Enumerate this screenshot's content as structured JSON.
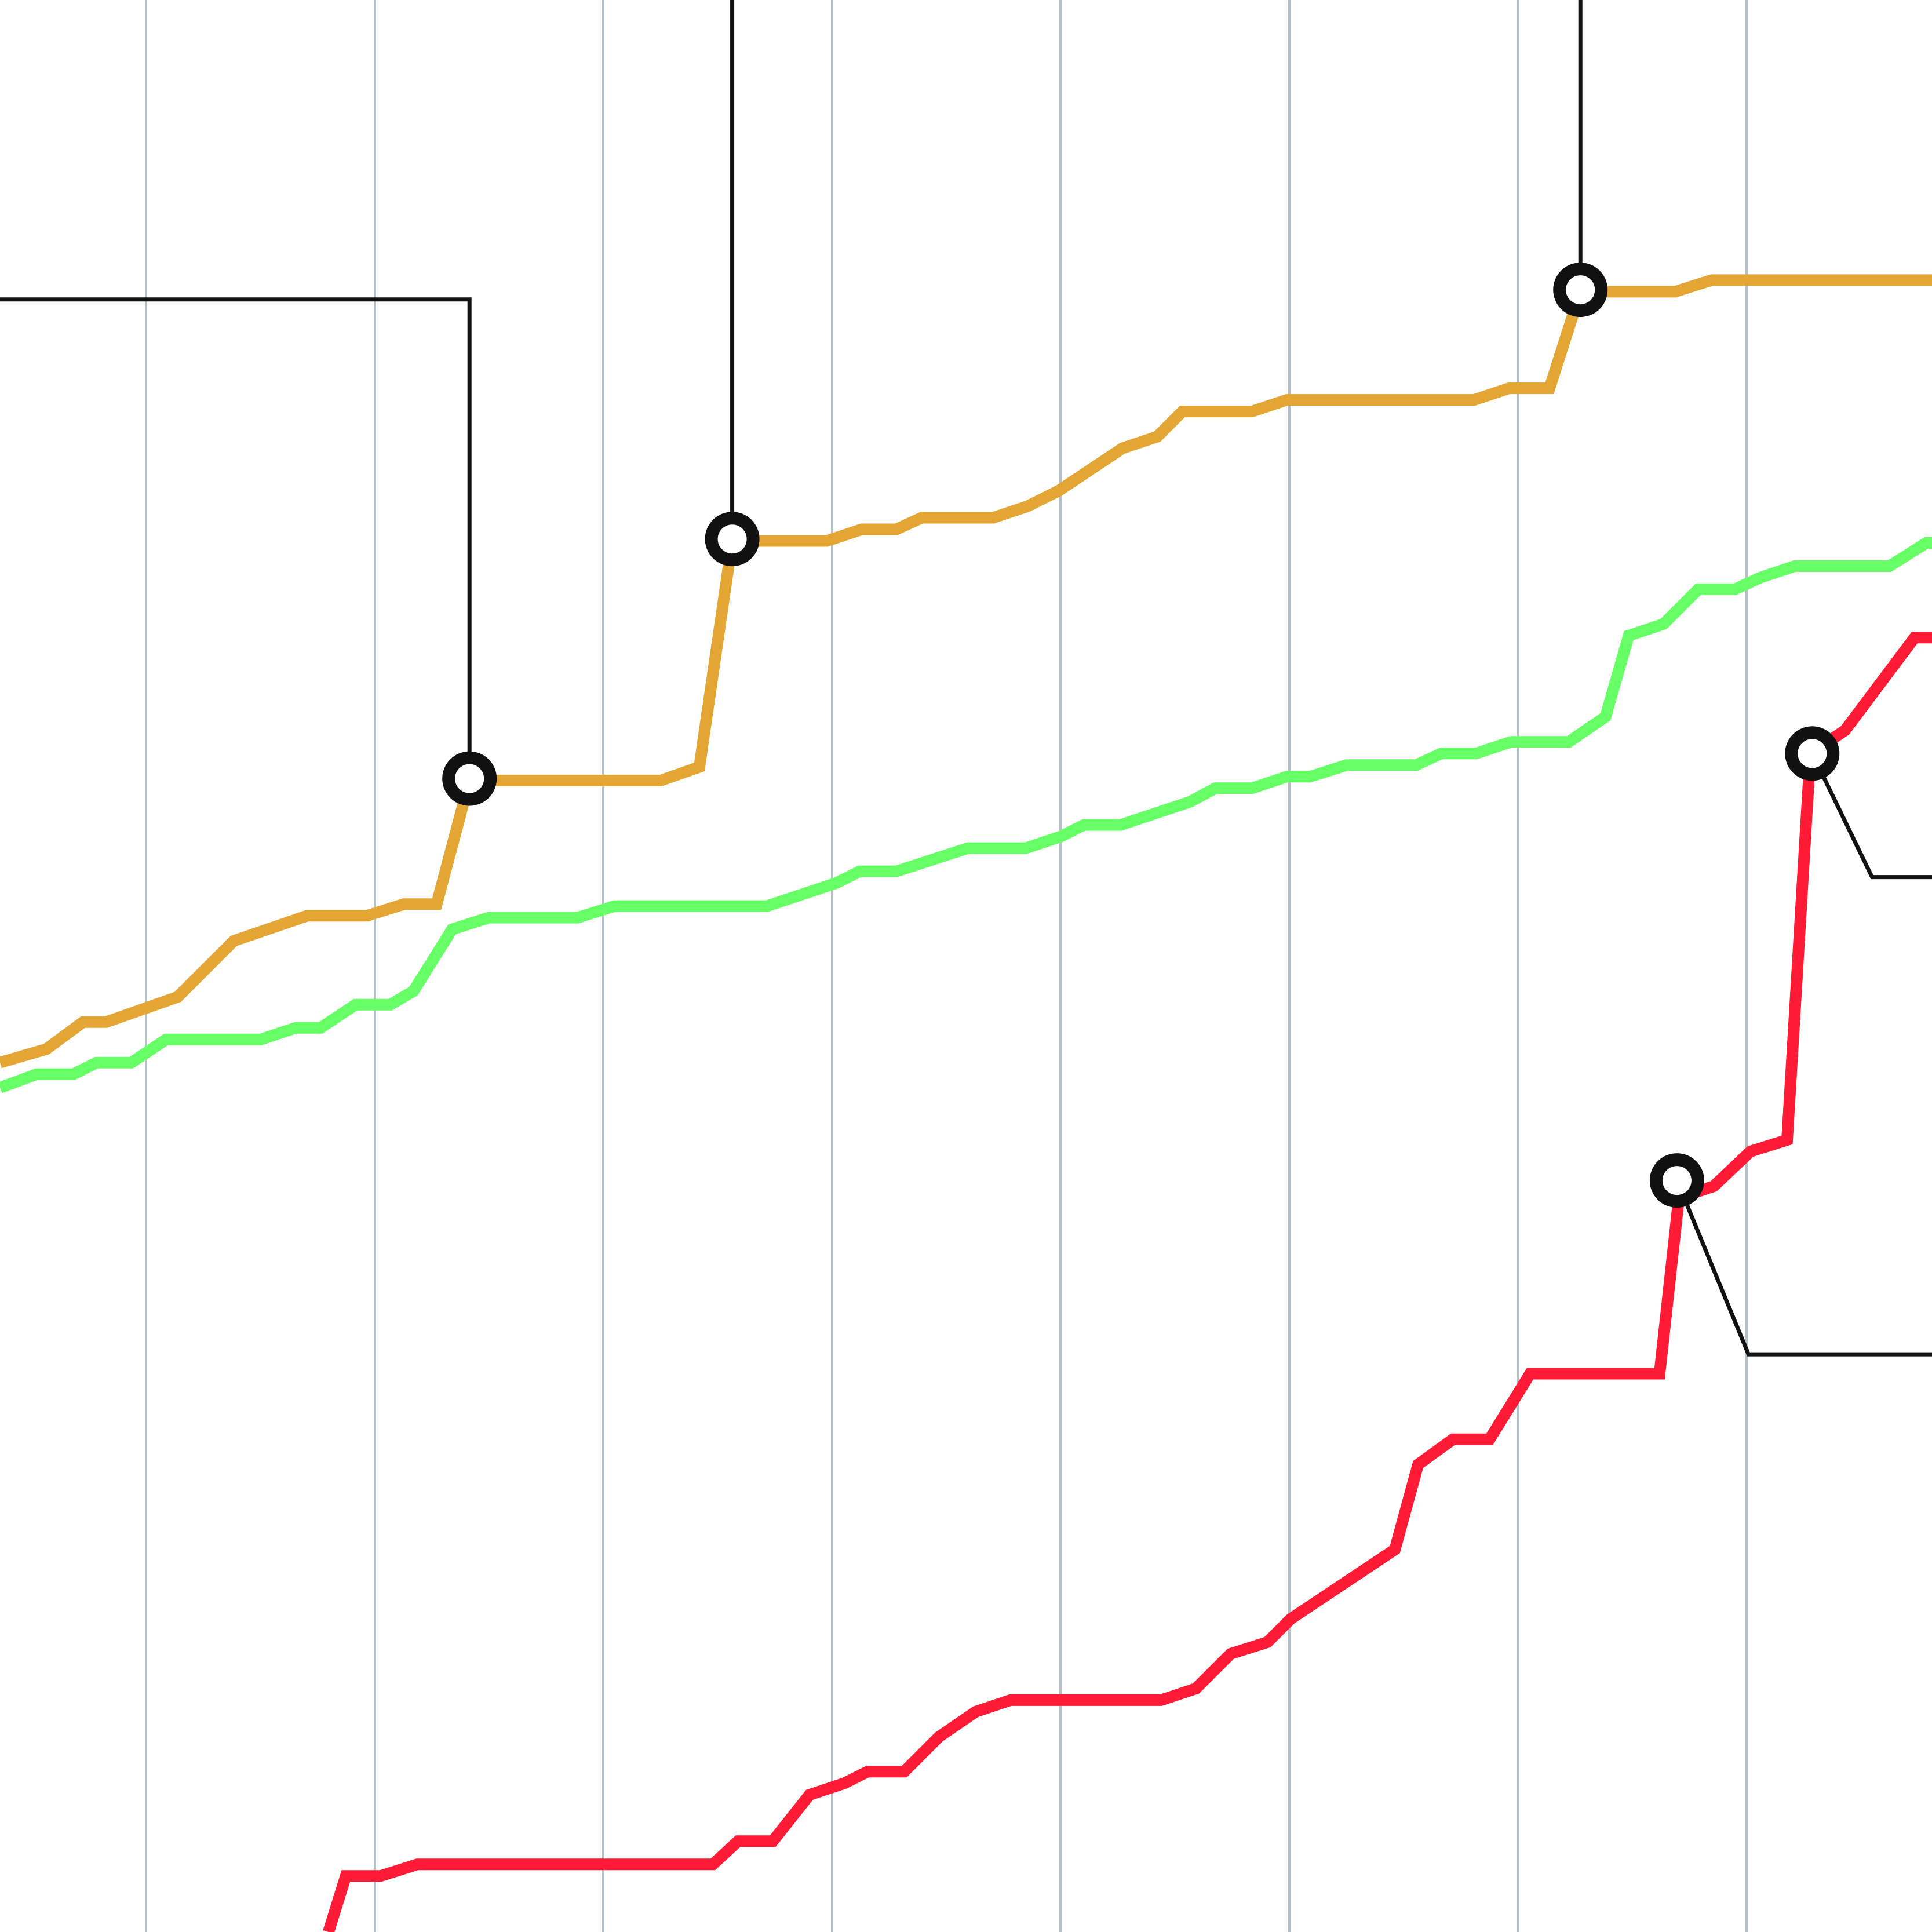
{
  "chart_data": {
    "type": "line",
    "title": "",
    "xlabel": "",
    "ylabel": "",
    "x_range": [
      0,
      100
    ],
    "y_range": [
      0,
      100
    ],
    "vertical_grid": true,
    "legend": "none",
    "colors": {
      "grid": "#B4C2C8",
      "orange": "#E3A533",
      "green": "#66FF66",
      "red": "#FF1B35",
      "annotation": "#111111",
      "marker_fill": "#ffffff"
    },
    "series": [
      {
        "key": "orange",
        "points": [
          [
            0,
            45
          ],
          [
            2.4,
            45.7
          ],
          [
            4.3,
            47.1
          ],
          [
            5.5,
            47.1
          ],
          [
            9.2,
            48.4
          ],
          [
            12.1,
            51.3
          ],
          [
            15.9,
            52.6
          ],
          [
            19,
            52.6
          ],
          [
            20.9,
            53.2
          ],
          [
            22.6,
            53.2
          ],
          [
            24.3,
            59.6
          ],
          [
            34.2,
            59.6
          ],
          [
            36.2,
            60.3
          ],
          [
            37.9,
            72
          ],
          [
            42.8,
            72
          ],
          [
            44.6,
            72.6
          ],
          [
            46.4,
            72.6
          ],
          [
            47.7,
            73.2
          ],
          [
            51.4,
            73.2
          ],
          [
            53.2,
            73.8
          ],
          [
            54.8,
            74.6
          ],
          [
            58.1,
            76.8
          ],
          [
            59.9,
            77.4
          ],
          [
            61.2,
            78.7
          ],
          [
            64.8,
            78.7
          ],
          [
            66.6,
            79.3
          ],
          [
            76.3,
            79.3
          ],
          [
            78.1,
            79.9
          ],
          [
            80.2,
            79.9
          ],
          [
            81.8,
            84.9
          ],
          [
            86.7,
            84.9
          ],
          [
            88.6,
            85.5
          ],
          [
            100,
            85.5
          ]
        ]
      },
      {
        "key": "green",
        "points": [
          [
            0,
            43.7
          ],
          [
            1.9,
            44.4
          ],
          [
            3.8,
            44.4
          ],
          [
            5,
            45
          ],
          [
            6.8,
            45
          ],
          [
            8.6,
            46.2
          ],
          [
            13.5,
            46.2
          ],
          [
            15.3,
            46.8
          ],
          [
            16.6,
            46.8
          ],
          [
            18.4,
            48
          ],
          [
            20.2,
            48
          ],
          [
            21.4,
            48.7
          ],
          [
            23.4,
            51.9
          ],
          [
            25.3,
            52.5
          ],
          [
            29.9,
            52.5
          ],
          [
            31.8,
            53.1
          ],
          [
            39.7,
            53.1
          ],
          [
            43.3,
            54.3
          ],
          [
            44.5,
            54.9
          ],
          [
            46.4,
            54.9
          ],
          [
            50.1,
            56.1
          ],
          [
            53.1,
            56.1
          ],
          [
            54.9,
            56.7
          ],
          [
            56.1,
            57.3
          ],
          [
            58,
            57.3
          ],
          [
            61.6,
            58.5
          ],
          [
            62.9,
            59.2
          ],
          [
            64.8,
            59.2
          ],
          [
            66.6,
            59.8
          ],
          [
            67.8,
            59.8
          ],
          [
            69.7,
            60.4
          ],
          [
            73.3,
            60.4
          ],
          [
            74.6,
            61
          ],
          [
            76.4,
            61
          ],
          [
            78.2,
            61.6
          ],
          [
            81.2,
            61.6
          ],
          [
            83.1,
            62.9
          ],
          [
            84.3,
            67.1
          ],
          [
            86.1,
            67.7
          ],
          [
            87.9,
            69.5
          ],
          [
            89.8,
            69.5
          ],
          [
            91.1,
            70.1
          ],
          [
            92.9,
            70.7
          ],
          [
            97.8,
            70.7
          ],
          [
            99.7,
            71.9
          ],
          [
            100,
            71.9
          ]
        ]
      },
      {
        "key": "red",
        "points": [
          [
            17,
            0
          ],
          [
            17.9,
            2.9
          ],
          [
            19.7,
            2.9
          ],
          [
            21.6,
            3.5
          ],
          [
            36.9,
            3.5
          ],
          [
            38.2,
            4.7
          ],
          [
            40,
            4.7
          ],
          [
            41.9,
            7.1
          ],
          [
            43.7,
            7.7
          ],
          [
            44.9,
            8.3
          ],
          [
            46.8,
            8.3
          ],
          [
            48.6,
            10.1
          ],
          [
            50.5,
            11.4
          ],
          [
            52.3,
            12
          ],
          [
            60.1,
            12
          ],
          [
            61.9,
            12.6
          ],
          [
            63.7,
            14.4
          ],
          [
            65.6,
            15
          ],
          [
            66.8,
            16.2
          ],
          [
            72.2,
            19.8
          ],
          [
            73.4,
            24.2
          ],
          [
            75.2,
            25.5
          ],
          [
            77.1,
            25.5
          ],
          [
            79.2,
            28.9
          ],
          [
            85.9,
            28.9
          ],
          [
            86.9,
            38
          ],
          [
            88.7,
            38.6
          ],
          [
            90.6,
            40.4
          ],
          [
            92.5,
            41
          ],
          [
            93.7,
            61
          ],
          [
            95.5,
            62.2
          ],
          [
            99.1,
            67
          ],
          [
            100,
            67
          ]
        ]
      }
    ],
    "markers": [
      {
        "series": "orange",
        "x": 24.3,
        "y": 59.7
      },
      {
        "series": "orange",
        "x": 37.9,
        "y": 72.1
      },
      {
        "series": "orange",
        "x": 81.8,
        "y": 85
      },
      {
        "series": "red",
        "x": 86.8,
        "y": 38.9
      },
      {
        "series": "red",
        "x": 93.8,
        "y": 61
      }
    ],
    "callouts": [
      {
        "points": [
          [
            0,
            84.5
          ],
          [
            24.3,
            84.5
          ],
          [
            24.3,
            59.7
          ]
        ]
      },
      {
        "points": [
          [
            37.9,
            100
          ],
          [
            37.9,
            72.1
          ]
        ]
      },
      {
        "points": [
          [
            81.8,
            100
          ],
          [
            81.8,
            85
          ]
        ]
      },
      {
        "points": [
          [
            86.8,
            38.9
          ],
          [
            90.5,
            29.9
          ],
          [
            100,
            29.9
          ]
        ]
      },
      {
        "points": [
          [
            93.8,
            61
          ],
          [
            96.9,
            54.6
          ],
          [
            100,
            54.6
          ]
        ]
      }
    ]
  }
}
